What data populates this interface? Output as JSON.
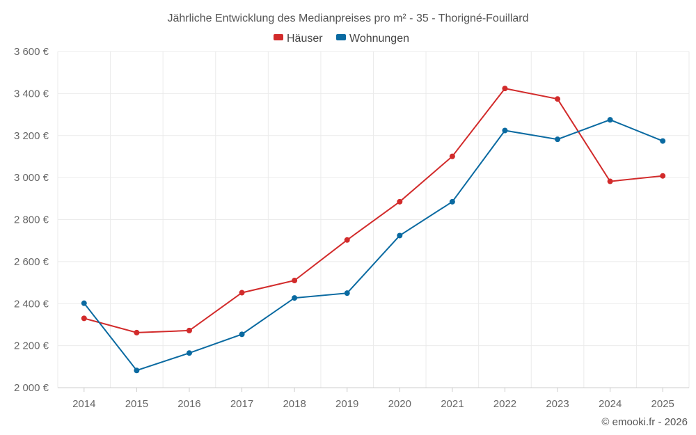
{
  "chart_data": {
    "type": "line",
    "title": "Jährliche Entwicklung des Medianpreises pro m² - 35 - Thorigné-Fouillard",
    "categories": [
      "2014",
      "2015",
      "2016",
      "2017",
      "2018",
      "2019",
      "2020",
      "2021",
      "2022",
      "2023",
      "2024",
      "2025"
    ],
    "series": [
      {
        "name": "Häuser",
        "color": "#d22b2b",
        "values": [
          2330,
          2262,
          2272,
          2452,
          2510,
          2703,
          2885,
          3101,
          3424,
          3374,
          2982,
          3008
        ]
      },
      {
        "name": "Wohnungen",
        "color": "#0a6aa1",
        "values": [
          2402,
          2082,
          2165,
          2254,
          2427,
          2450,
          2724,
          2885,
          3224,
          3182,
          3275,
          3174
        ]
      }
    ],
    "ylim": [
      2000,
      3600
    ],
    "yticks": [
      2000,
      2200,
      2400,
      2600,
      2800,
      3000,
      3200,
      3400,
      3600
    ],
    "ytick_labels": [
      "2 000 €",
      "2 200 €",
      "2 400 €",
      "2 600 €",
      "2 800 €",
      "3 000 €",
      "3 200 €",
      "3 400 €",
      "3 600 €"
    ],
    "legend_position": "top-center",
    "grid": true
  },
  "credit": "© emooki.fr - 2026"
}
